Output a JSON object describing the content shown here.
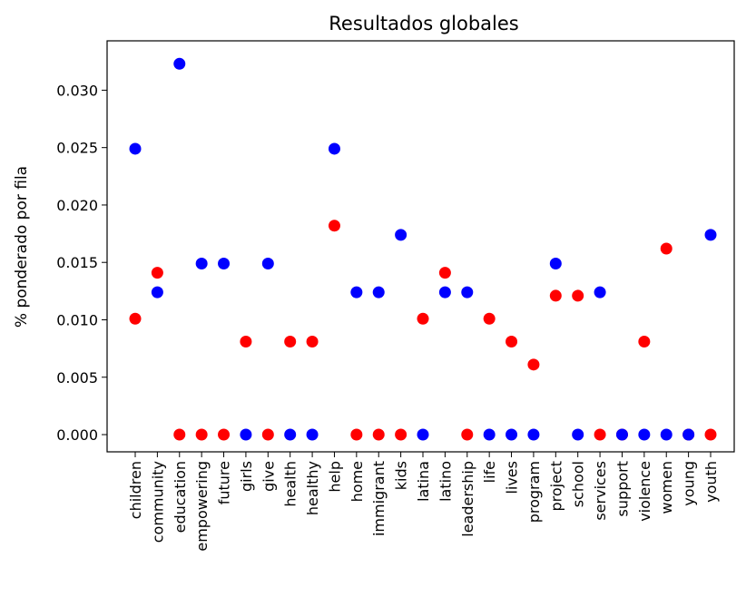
{
  "chart_data": {
    "type": "scatter",
    "title": "Resultados globales",
    "xlabel": "",
    "ylabel": "% ponderado por fila",
    "ylim": [
      -0.0015,
      0.0343
    ],
    "yticks": [
      "0.000",
      "0.005",
      "0.010",
      "0.015",
      "0.020",
      "0.025",
      "0.030"
    ],
    "categories": [
      "children",
      "community",
      "education",
      "empowering",
      "future",
      "girls",
      "give",
      "health",
      "healthy",
      "help",
      "home",
      "immigrant",
      "kids",
      "latina",
      "latino",
      "leadership",
      "life",
      "lives",
      "program",
      "project",
      "school",
      "services",
      "support",
      "violence",
      "women",
      "young",
      "youth"
    ],
    "grid": false,
    "series": [
      {
        "color": "#ff0000",
        "values": [
          0.0101,
          0.0141,
          0.0,
          0.0,
          0.0,
          0.0081,
          0.0,
          0.0081,
          0.0081,
          0.0182,
          0.0,
          0.0,
          0.0,
          0.0101,
          0.0141,
          0.0,
          0.0101,
          0.0081,
          0.0061,
          0.0121,
          0.0121,
          0.0,
          0.0,
          0.0081,
          0.0162,
          0.0,
          0.0
        ]
      },
      {
        "color": "#0000ff",
        "values": [
          0.0249,
          0.0124,
          0.0323,
          0.0149,
          0.0149,
          0.0,
          0.0149,
          0.0,
          0.0,
          0.0249,
          0.0124,
          0.0124,
          0.0174,
          0.0,
          0.0124,
          0.0124,
          0.0,
          0.0,
          0.0,
          0.0149,
          0.0,
          0.0124,
          0.0,
          0.0,
          0.0,
          0.0,
          0.0174
        ]
      }
    ]
  }
}
